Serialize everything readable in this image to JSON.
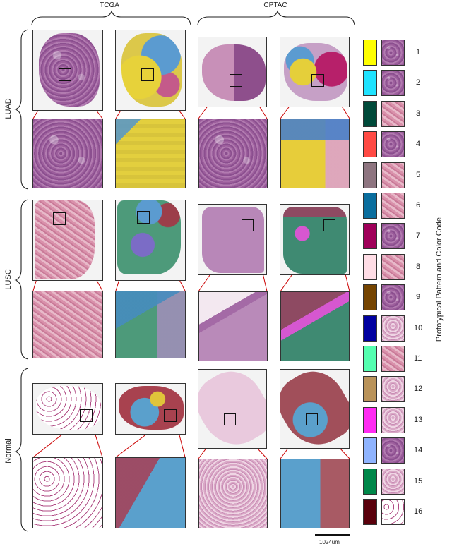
{
  "figure": {
    "columns": [
      {
        "label": "TCGA"
      },
      {
        "label": "CPTAC"
      }
    ],
    "rows": [
      {
        "label": "LUAD"
      },
      {
        "label": "LUSC"
      },
      {
        "label": "Normal"
      }
    ],
    "legend": {
      "title": "Prototypical Pattern and Color Code",
      "items": [
        {
          "num": "1",
          "color": "#FFFF00"
        },
        {
          "num": "2",
          "color": "#1FE3FF"
        },
        {
          "num": "3",
          "color": "#004A3A"
        },
        {
          "num": "4",
          "color": "#FF4A44"
        },
        {
          "num": "5",
          "color": "#8E7580"
        },
        {
          "num": "6",
          "color": "#0A6E9E"
        },
        {
          "num": "7",
          "color": "#A0005A"
        },
        {
          "num": "8",
          "color": "#FFDDE6"
        },
        {
          "num": "9",
          "color": "#754400"
        },
        {
          "num": "10",
          "color": "#0000A0"
        },
        {
          "num": "11",
          "color": "#55FFB0"
        },
        {
          "num": "12",
          "color": "#B9935A"
        },
        {
          "num": "13",
          "color": "#FF2BF2"
        },
        {
          "num": "14",
          "color": "#8FB4FF"
        },
        {
          "num": "15",
          "color": "#00884A"
        },
        {
          "num": "16",
          "color": "#5A000C"
        }
      ]
    },
    "scale_bar": {
      "label": "1024um"
    }
  }
}
